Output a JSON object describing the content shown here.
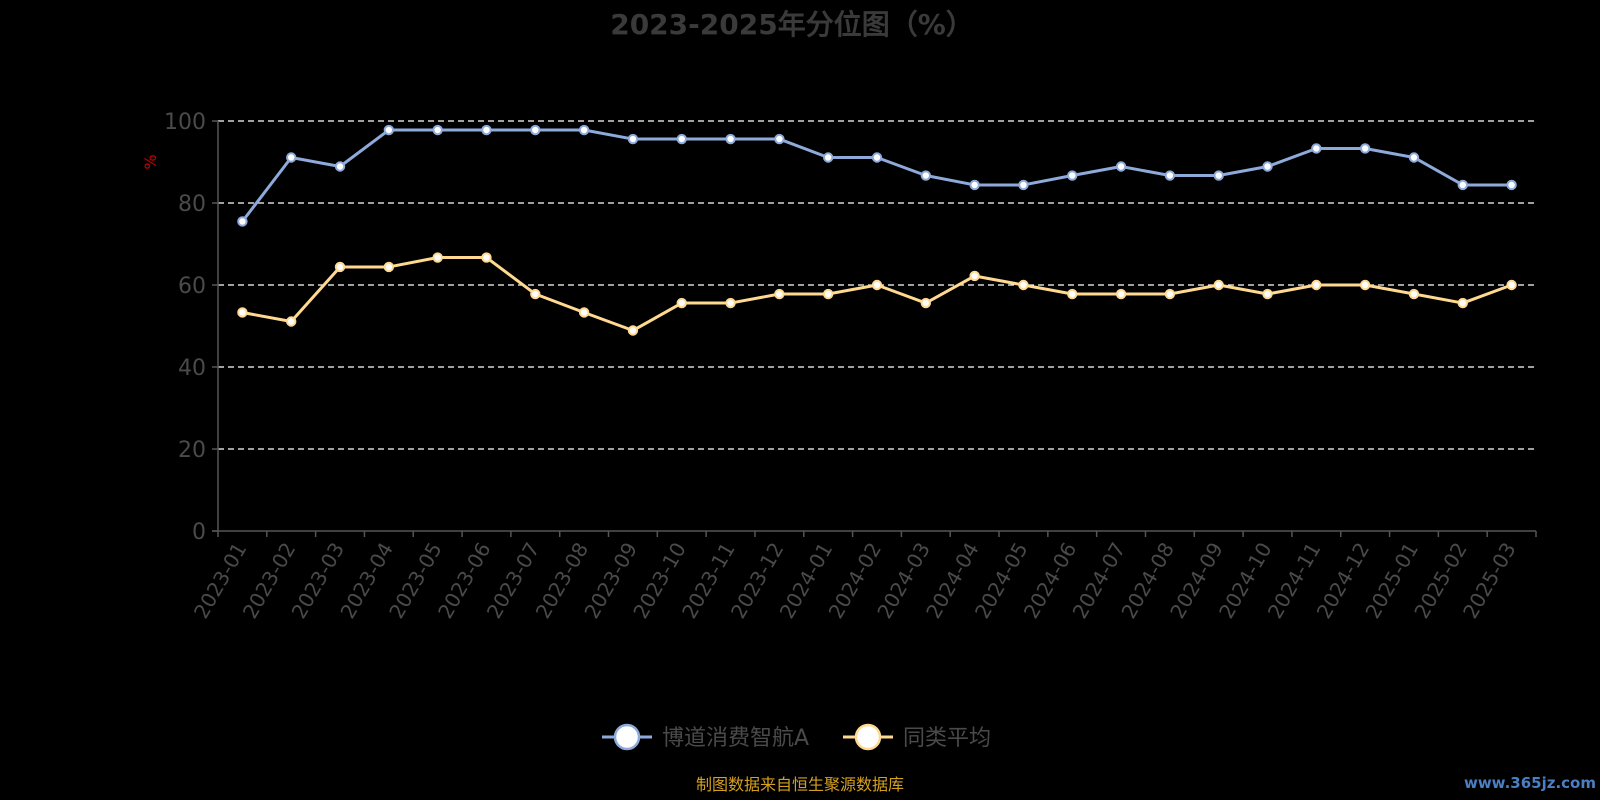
{
  "chart_data": {
    "type": "line",
    "title": "2023-2025年分位图（%）",
    "ylabel": "%",
    "ylim": [
      0,
      100
    ],
    "yticks": [
      0,
      20,
      40,
      60,
      80,
      100
    ],
    "grid": true,
    "legend_position": "bottom-center",
    "categories": [
      "2023-01",
      "2023-02",
      "2023-03",
      "2023-04",
      "2023-05",
      "2023-06",
      "2023-07",
      "2023-08",
      "2023-09",
      "2023-10",
      "2023-11",
      "2023-12",
      "2024-01",
      "2024-02",
      "2024-03",
      "2024-04",
      "2024-05",
      "2024-06",
      "2024-07",
      "2024-08",
      "2024-09",
      "2024-10",
      "2024-11",
      "2024-12",
      "2025-01",
      "2025-02",
      "2025-03"
    ],
    "series": [
      {
        "name": "博道消费智航A",
        "color": "#8eaadb",
        "values": [
          75.5,
          91.1,
          88.9,
          97.8,
          97.8,
          97.8,
          97.8,
          97.8,
          95.6,
          95.6,
          95.6,
          95.6,
          91.1,
          91.1,
          86.7,
          84.4,
          84.4,
          86.7,
          88.9,
          86.7,
          86.7,
          88.9,
          93.3,
          93.3,
          91.1,
          84.4,
          84.4
        ]
      },
      {
        "name": "同类平均",
        "color": "#ffd98f",
        "values": [
          53.3,
          51.1,
          64.4,
          64.4,
          66.7,
          66.7,
          57.8,
          53.3,
          48.9,
          55.6,
          55.6,
          57.8,
          57.8,
          60.0,
          55.6,
          62.2,
          60.0,
          57.8,
          57.8,
          57.8,
          60.0,
          57.8,
          60.0,
          60.0,
          57.8,
          55.6,
          60.0
        ]
      }
    ]
  },
  "colors": {
    "background": "#000000",
    "axis": "#555555",
    "grid": "#ffffff",
    "ylabel": "#cc0000",
    "source": "#d4a020",
    "watermark": "#4a7fc4"
  },
  "footer": {
    "source_text": "制图数据来自恒生聚源数据库",
    "watermark": "www.365jz.com"
  }
}
